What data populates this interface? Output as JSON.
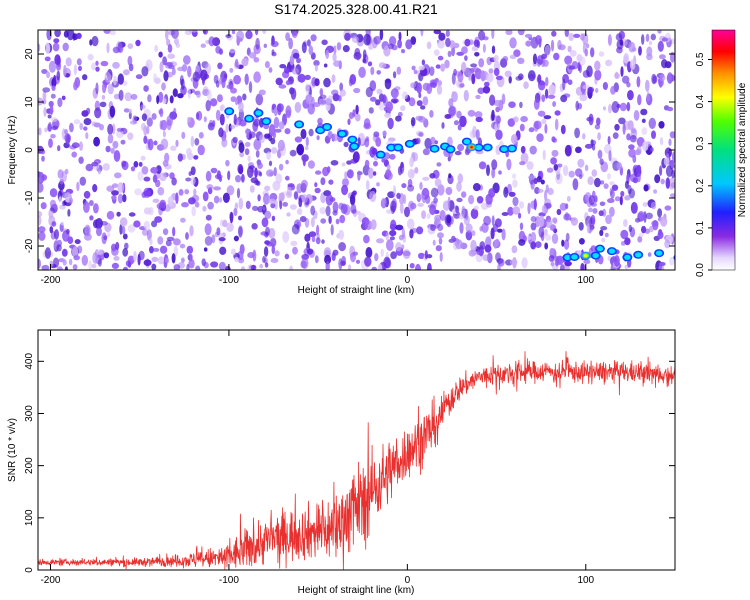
{
  "figure_title": "S174.2025.328.00.41.R21",
  "colors": {
    "snr_line": "#e8312f",
    "spectrum_background": "#ffffff",
    "spectrum_blob_purple": "#7a3df0",
    "spectrum_blob_light": "#c9a8f5"
  },
  "chart_data": [
    {
      "type": "heatmap",
      "title": "",
      "xlabel": "Height of straight line (km)",
      "ylabel": "Frequency (Hz)",
      "xlim": [
        -207,
        150
      ],
      "ylim": [
        -25,
        25
      ],
      "xticks": [
        -200,
        -100,
        0,
        100
      ],
      "yticks": [
        -20,
        -10,
        0,
        10,
        20
      ],
      "grid": false,
      "colorbar": {
        "label": "Normalized spectral amplitude",
        "range": [
          0,
          0.57
        ],
        "ticks": [
          0.0,
          0.1,
          0.2,
          0.3,
          0.4,
          0.5
        ],
        "colormap": "rainbow (violet → blue → cyan → green → yellow → red → magenta)"
      },
      "features": [
        {
          "description": "tilted carrier streak",
          "x_range": [
            -100,
            -30
          ],
          "frequency_hz": [
            8,
            3
          ],
          "amplitude": 0.15
        },
        {
          "description": "carrier near 0 Hz",
          "x_range": [
            -30,
            60
          ],
          "frequency_hz": 0.5,
          "amplitude": 0.2
        },
        {
          "description": "peak",
          "x": 36,
          "frequency_hz": 0.6,
          "amplitude": 0.45
        },
        {
          "description": "carrier near -22 Hz",
          "x_range": [
            85,
            150
          ],
          "frequency_hz": -22,
          "amplitude": 0.2
        },
        {
          "description": "peak",
          "x": 100,
          "frequency_hz": -22,
          "amplitude": 0.35
        }
      ]
    },
    {
      "type": "line",
      "title": "",
      "xlabel": "Height of straight line (km)",
      "ylabel": "SNR (10 * v/v)",
      "xlim": [
        -207,
        150
      ],
      "ylim": [
        0,
        460
      ],
      "xticks": [
        -200,
        -100,
        0,
        100
      ],
      "yticks": [
        0,
        100,
        200,
        300,
        400
      ],
      "grid": false,
      "series": [
        {
          "x": [
            -207,
            -190,
            -170,
            -150,
            -130,
            -115,
            -100,
            -90,
            -80,
            -70,
            -60,
            -50,
            -40,
            -35,
            -30,
            -25,
            -20,
            -15,
            -10,
            -5,
            0,
            5,
            10,
            15,
            20,
            25,
            30,
            40,
            50,
            60,
            70,
            80,
            90,
            100,
            110,
            120,
            130,
            140,
            150
          ],
          "y": [
            15,
            15,
            15,
            15,
            18,
            20,
            25,
            40,
            55,
            65,
            70,
            75,
            80,
            100,
            120,
            130,
            150,
            170,
            190,
            210,
            225,
            240,
            260,
            280,
            305,
            330,
            350,
            370,
            375,
            378,
            380,
            382,
            380,
            378,
            380,
            380,
            378,
            376,
            375
          ],
          "noise": [
            5,
            5,
            6,
            7,
            10,
            15,
            25,
            35,
            40,
            45,
            45,
            50,
            60,
            70,
            70,
            70,
            70,
            60,
            55,
            50,
            45,
            45,
            45,
            40,
            30,
            25,
            20,
            18,
            18,
            18,
            18,
            18,
            18,
            18,
            18,
            18,
            18,
            18,
            18
          ]
        }
      ]
    }
  ]
}
